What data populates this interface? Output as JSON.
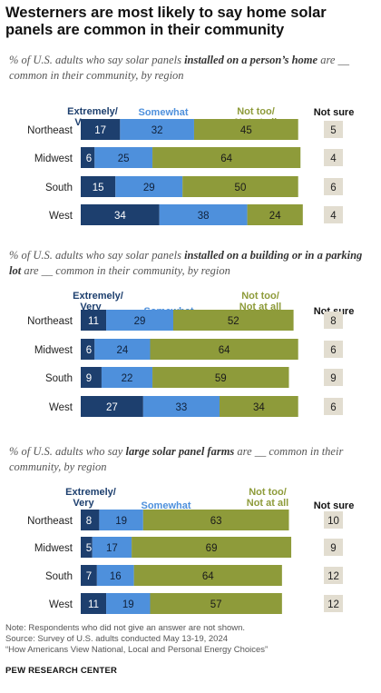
{
  "title": "Westerners are most likely to say home solar panels are common in their community",
  "subtitles": [
    {
      "pre": "% of U.S. adults who say solar panels ",
      "bold": "installed on a person’s home",
      "post": " are __ common in their community, by region"
    },
    {
      "pre": "% of U.S. adults who say solar panels ",
      "bold": "installed on a building or in a parking lot",
      "post": " are __ common in their community, by region"
    },
    {
      "pre": "% of U.S. adults who say ",
      "bold": "large solar panel farms",
      "post": " are __ common in their community, by region"
    }
  ],
  "legend": {
    "very_line1": "Extremely/",
    "very_line2": "Very",
    "somewhat": "Somewhat",
    "not_line1": "Not too/",
    "not_line2": "Not at all",
    "not_sure": "Not sure"
  },
  "colors": {
    "very": "#1d3f6e",
    "somewhat": "#4e90dc",
    "not": "#8e9b3a",
    "not_sure_box": "#e2ddd0",
    "very_label": "#1d3f6e",
    "somewhat_label": "#4e90dc",
    "not_label": "#8e9b3a"
  },
  "chart_data": [
    {
      "type": "bar",
      "stacked": true,
      "orientation": "horizontal",
      "categories": [
        "Northeast",
        "Midwest",
        "South",
        "West"
      ],
      "series": [
        {
          "name": "Extremely/Very",
          "values": [
            17,
            6,
            15,
            34
          ]
        },
        {
          "name": "Somewhat",
          "values": [
            32,
            25,
            29,
            38
          ]
        },
        {
          "name": "Not too/Not at all",
          "values": [
            45,
            64,
            50,
            24
          ]
        },
        {
          "name": "Not sure",
          "values": [
            5,
            4,
            6,
            4
          ]
        }
      ]
    },
    {
      "type": "bar",
      "stacked": true,
      "orientation": "horizontal",
      "categories": [
        "Northeast",
        "Midwest",
        "South",
        "West"
      ],
      "series": [
        {
          "name": "Extremely/Very",
          "values": [
            11,
            6,
            9,
            27
          ]
        },
        {
          "name": "Somewhat",
          "values": [
            29,
            24,
            22,
            33
          ]
        },
        {
          "name": "Not too/Not at all",
          "values": [
            52,
            64,
            59,
            34
          ]
        },
        {
          "name": "Not sure",
          "values": [
            8,
            6,
            9,
            6
          ]
        }
      ]
    },
    {
      "type": "bar",
      "stacked": true,
      "orientation": "horizontal",
      "categories": [
        "Northeast",
        "Midwest",
        "South",
        "West"
      ],
      "series": [
        {
          "name": "Extremely/Very",
          "values": [
            8,
            5,
            7,
            11
          ]
        },
        {
          "name": "Somewhat",
          "values": [
            19,
            17,
            16,
            19
          ]
        },
        {
          "name": "Not too/Not at all",
          "values": [
            63,
            69,
            64,
            57
          ]
        },
        {
          "name": "Not sure",
          "values": [
            10,
            9,
            12,
            12
          ]
        }
      ]
    }
  ],
  "footer": {
    "note": "Note: Respondents who did not give an answer are not shown.",
    "source": "Source: Survey of U.S. adults conducted May 13-19, 2024",
    "report": "“How Americans View National, Local and Personal Energy Choices”"
  },
  "logo": "PEW RESEARCH CENTER"
}
